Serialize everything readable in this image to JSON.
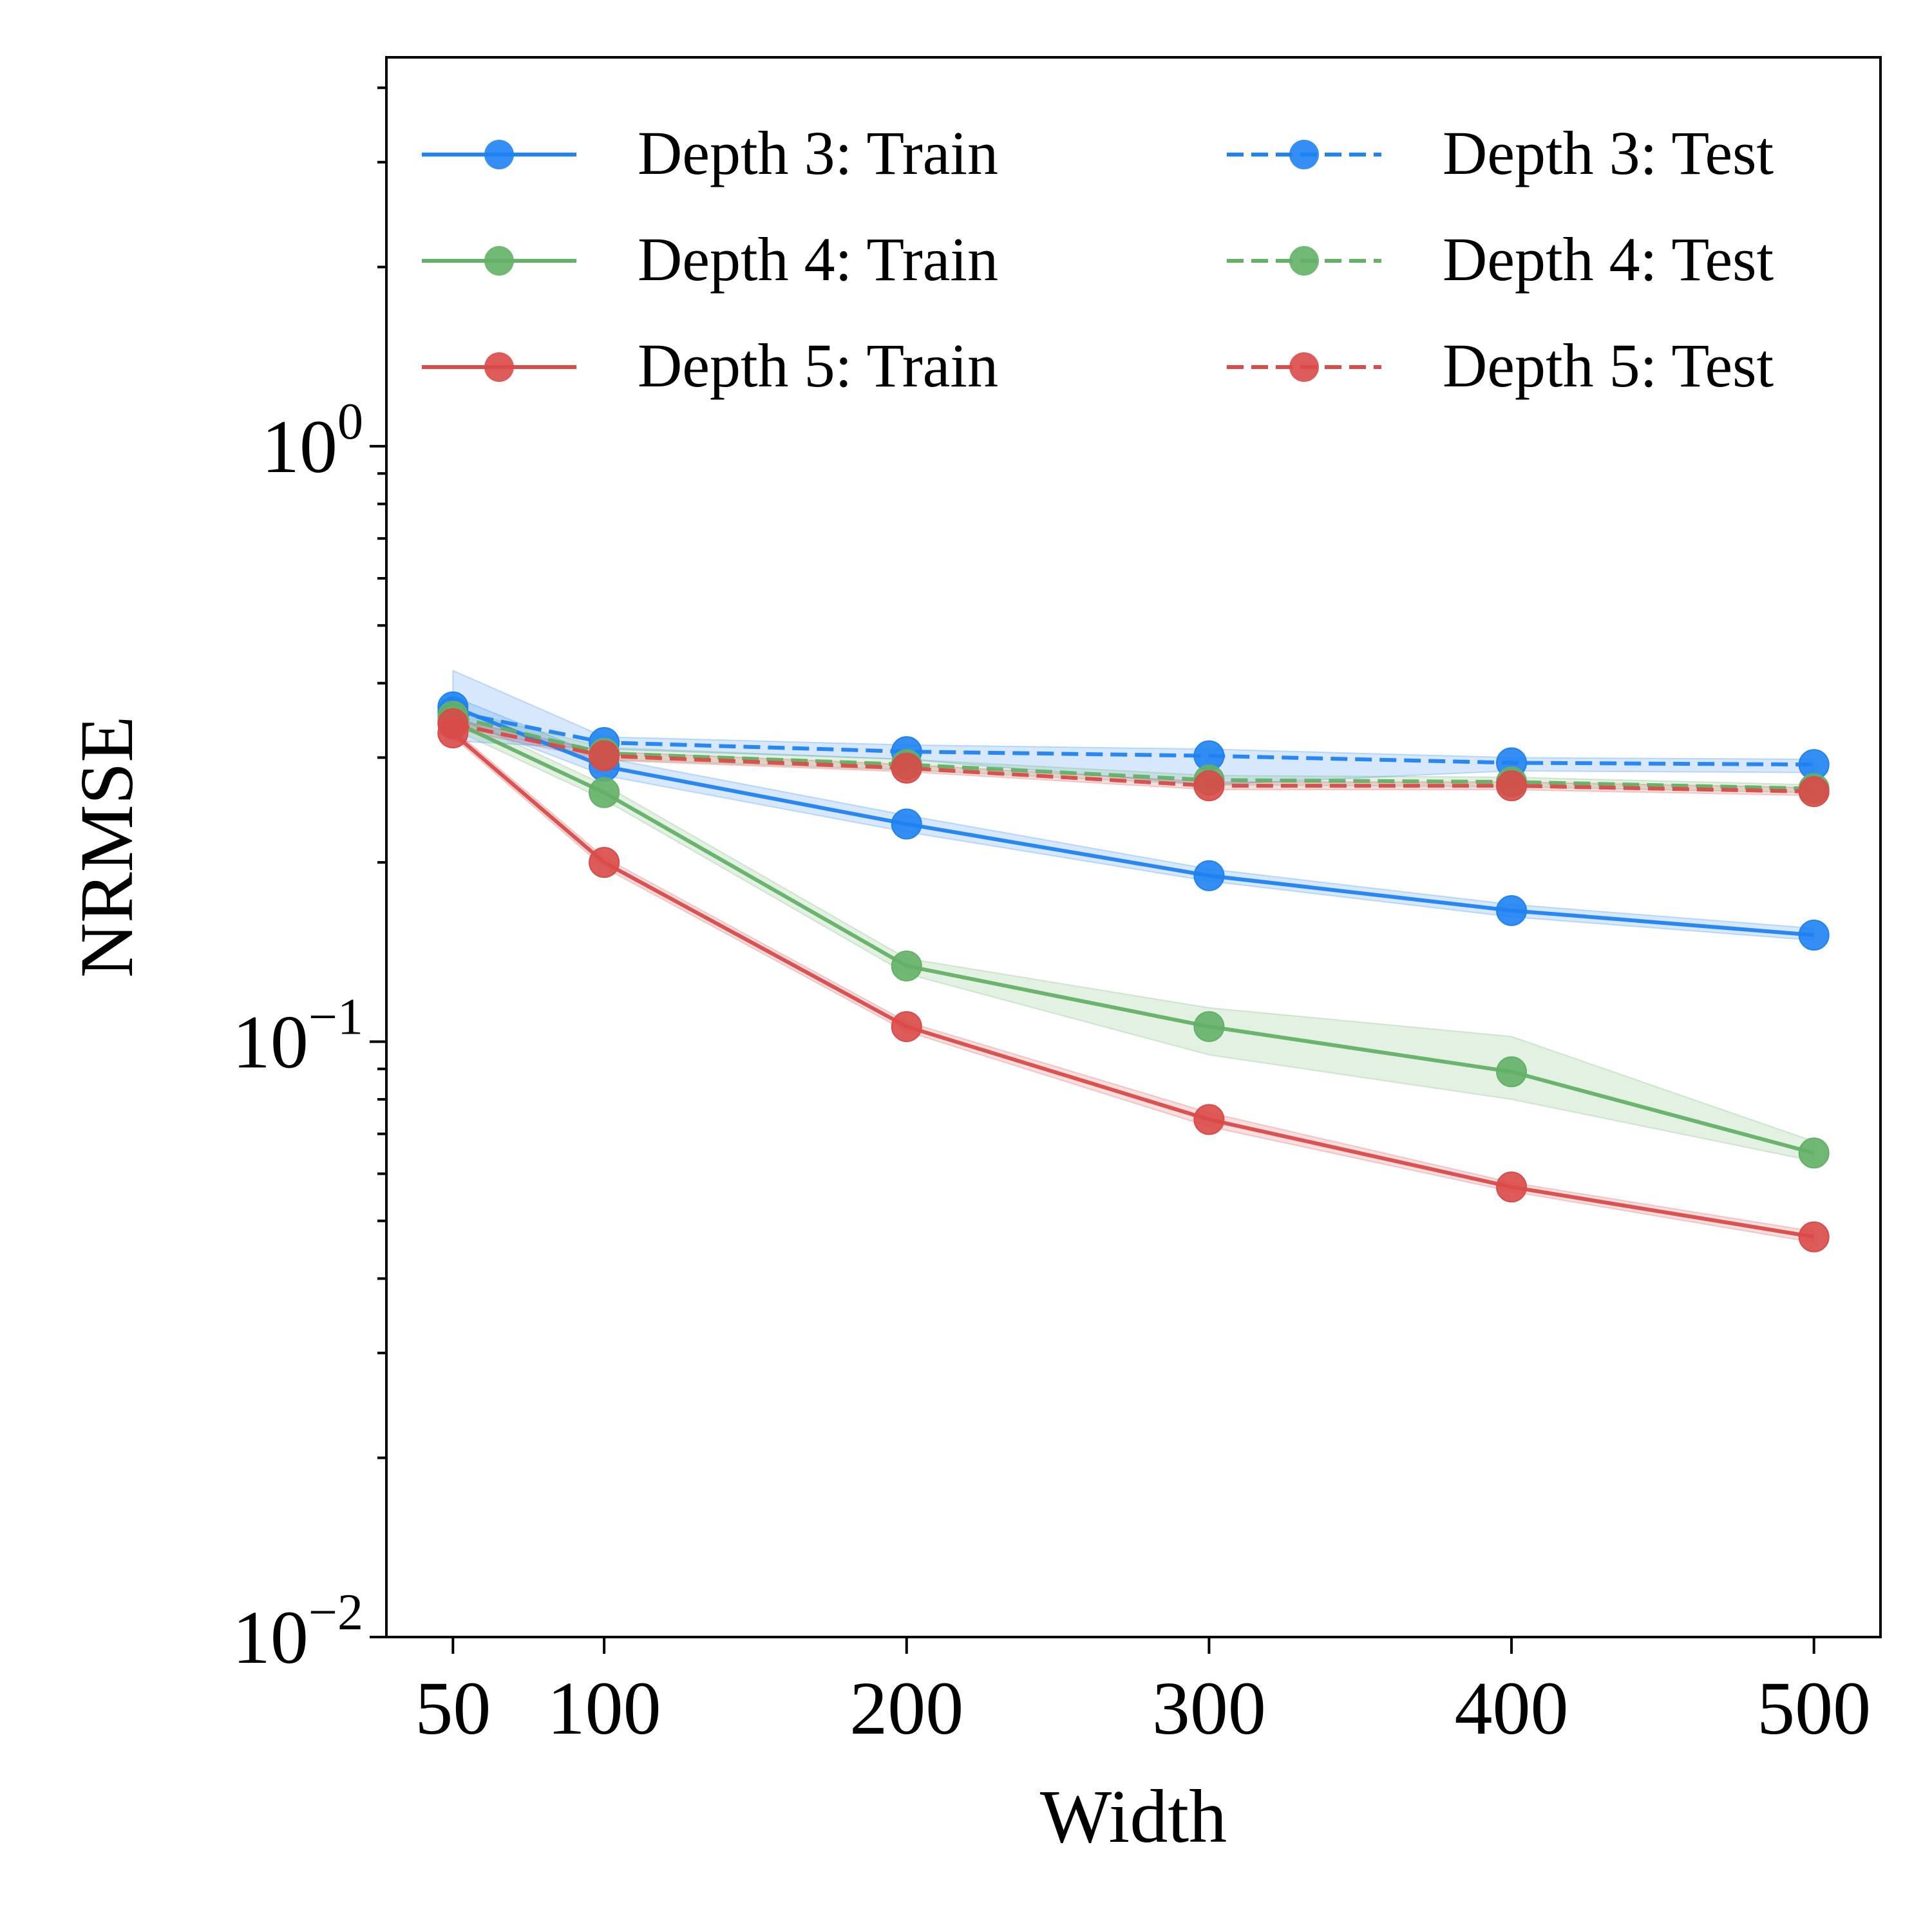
{
  "chart_data": {
    "type": "line",
    "title": "",
    "xlabel": "Width",
    "ylabel": "NRMSE",
    "yscale": "log",
    "ylim": [
      0.01,
      4.5
    ],
    "xlim": [
      28,
      522
    ],
    "grid": false,
    "legend_position": "top",
    "legend_columns": 2,
    "x": [
      50,
      100,
      200,
      300,
      400,
      500
    ],
    "x_tick_labels": [
      "50",
      "100",
      "200",
      "300",
      "400",
      "500"
    ],
    "y_ticks": [
      {
        "value": 0.01,
        "base": "10",
        "exp": "−2"
      },
      {
        "value": 0.1,
        "base": "10",
        "exp": "−1"
      },
      {
        "value": 1,
        "base": "10",
        "exp": "0"
      }
    ],
    "series": [
      {
        "name": "Depth 3: Train",
        "style": "solid",
        "color": "#1f82f2",
        "values": [
          0.365,
          0.29,
          0.232,
          0.19,
          0.166,
          0.151
        ],
        "band_low": [
          0.35,
          0.28,
          0.225,
          0.186,
          0.162,
          0.148
        ],
        "band_high": [
          0.38,
          0.3,
          0.24,
          0.195,
          0.17,
          0.155
        ]
      },
      {
        "name": "Depth 3: Test",
        "style": "dashed",
        "color": "#1f82f2",
        "values": [
          0.358,
          0.318,
          0.307,
          0.302,
          0.294,
          0.292
        ],
        "band_low": [
          0.32,
          0.31,
          0.298,
          0.27,
          0.285,
          0.283
        ],
        "band_high": [
          0.42,
          0.325,
          0.315,
          0.31,
          0.3,
          0.298
        ]
      },
      {
        "name": "Depth 4: Train",
        "style": "solid",
        "color": "#63b066",
        "values": [
          0.345,
          0.262,
          0.134,
          0.106,
          0.089,
          0.065
        ],
        "band_low": [
          0.335,
          0.255,
          0.13,
          0.095,
          0.08,
          0.063
        ],
        "band_high": [
          0.355,
          0.27,
          0.138,
          0.114,
          0.102,
          0.068
        ]
      },
      {
        "name": "Depth 4: Test",
        "style": "dashed",
        "color": "#63b066",
        "values": [
          0.352,
          0.305,
          0.292,
          0.275,
          0.273,
          0.266
        ],
        "band_low": [
          0.342,
          0.298,
          0.286,
          0.27,
          0.268,
          0.262
        ],
        "band_high": [
          0.362,
          0.312,
          0.298,
          0.28,
          0.278,
          0.27
        ]
      },
      {
        "name": "Depth 5: Train",
        "style": "solid",
        "color": "#d94a48",
        "values": [
          0.33,
          0.2,
          0.106,
          0.074,
          0.057,
          0.047
        ],
        "band_low": [
          0.325,
          0.196,
          0.104,
          0.072,
          0.056,
          0.046
        ],
        "band_high": [
          0.335,
          0.204,
          0.108,
          0.076,
          0.058,
          0.048
        ]
      },
      {
        "name": "Depth 5: Test",
        "style": "dashed",
        "color": "#d94a48",
        "values": [
          0.342,
          0.302,
          0.288,
          0.269,
          0.269,
          0.263
        ],
        "band_low": [
          0.336,
          0.297,
          0.284,
          0.265,
          0.265,
          0.259
        ],
        "band_high": [
          0.348,
          0.307,
          0.292,
          0.273,
          0.273,
          0.267
        ]
      }
    ],
    "legend_order": [
      0,
      1,
      2,
      3,
      4,
      5
    ]
  }
}
